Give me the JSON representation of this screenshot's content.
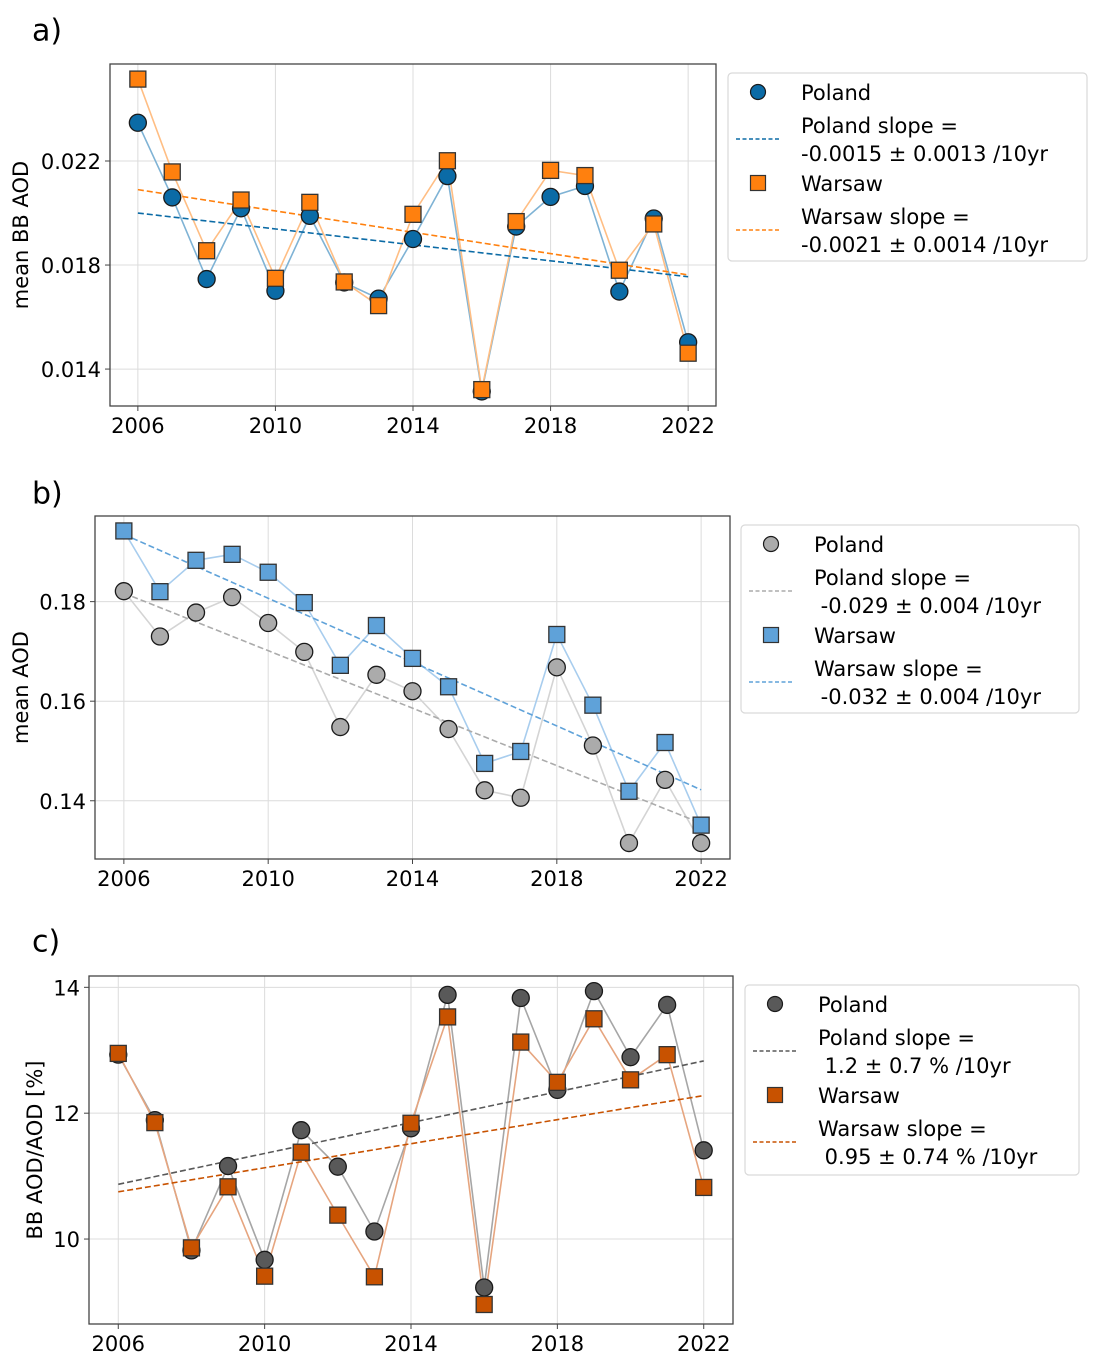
{
  "chart_data": [
    {
      "panel_label": "a)",
      "type": "line",
      "title": "",
      "xlabel": "",
      "ylabel": "mean BB AOD",
      "x": [
        2006,
        2007,
        2008,
        2009,
        2010,
        2011,
        2012,
        2013,
        2014,
        2015,
        2016,
        2017,
        2018,
        2019,
        2020,
        2021,
        2022
      ],
      "xlim": [
        2005.19,
        2022.81
      ],
      "ylim": [
        0.01258,
        0.02573
      ],
      "xticks": [
        2006,
        2010,
        2014,
        2018,
        2022
      ],
      "xtick_labels": [
        "2006",
        "2010",
        "2014",
        "2018",
        "2022"
      ],
      "yticks": [
        0.014,
        0.018,
        0.022
      ],
      "ytick_labels": [
        "0.014",
        "0.018",
        "0.022"
      ],
      "grid": true,
      "legend_position": "outside-right",
      "series": [
        {
          "name": "Poland",
          "marker": "circle",
          "color": "#0b6ba6",
          "line_color": "#7fb3d5",
          "values": [
            0.02347,
            0.0206,
            0.01746,
            0.02018,
            0.01701,
            0.01989,
            0.01733,
            0.01671,
            0.019,
            0.02142,
            0.01314,
            0.01948,
            0.02062,
            0.02104,
            0.01698,
            0.01979,
            0.01503
          ]
        },
        {
          "name": "Warsaw",
          "marker": "square",
          "color": "#ff800e",
          "line_color": "#ffbe84",
          "values": [
            0.02515,
            0.02158,
            0.01855,
            0.0205,
            0.01749,
            0.02041,
            0.01735,
            0.01644,
            0.01995,
            0.02201,
            0.01321,
            0.01967,
            0.02164,
            0.02144,
            0.0178,
            0.01958,
            0.01461
          ]
        }
      ],
      "trends": [
        {
          "name": "Poland slope",
          "label_line1": "Poland slope =",
          "label_line2": "-0.0015 ± 0.0013 /10yr",
          "color": "#0b6ba6",
          "start": [
            2006,
            0.02
          ],
          "end": [
            2022,
            0.01755
          ]
        },
        {
          "name": "Warsaw slope",
          "label_line1": "Warsaw slope =",
          "label_line2": "-0.0021 ± 0.0014 /10yr",
          "color": "#ff800e",
          "start": [
            2006,
            0.0209
          ],
          "end": [
            2022,
            0.01762
          ]
        }
      ]
    },
    {
      "panel_label": "b)",
      "type": "line",
      "title": "",
      "xlabel": "",
      "ylabel": "mean AOD",
      "x": [
        2006,
        2007,
        2008,
        2009,
        2010,
        2011,
        2012,
        2013,
        2014,
        2015,
        2016,
        2017,
        2018,
        2019,
        2020,
        2021,
        2022
      ],
      "xlim": [
        2005.2,
        2022.8
      ],
      "ylim": [
        0.1283,
        0.1972
      ],
      "xticks": [
        2006,
        2010,
        2014,
        2018,
        2022
      ],
      "xtick_labels": [
        "2006",
        "2010",
        "2014",
        "2018",
        "2022"
      ],
      "yticks": [
        0.14,
        0.16,
        0.18
      ],
      "ytick_labels": [
        "0.14",
        "0.16",
        "0.18"
      ],
      "grid": true,
      "legend_position": "outside-right",
      "series": [
        {
          "name": "Poland",
          "marker": "circle",
          "color": "#ababab",
          "line_color": "#d4d4d4",
          "values": [
            0.1821,
            0.173,
            0.1778,
            0.1809,
            0.1757,
            0.1699,
            0.1548,
            0.1653,
            0.162,
            0.1544,
            0.1421,
            0.1406,
            0.1668,
            0.1511,
            0.1315,
            0.1442,
            0.1315
          ]
        },
        {
          "name": "Warsaw",
          "marker": "square",
          "color": "#5fa2d9",
          "line_color": "#a8cdee",
          "values": [
            0.1942,
            0.182,
            0.1883,
            0.1895,
            0.1859,
            0.1798,
            0.1672,
            0.1752,
            0.1686,
            0.1629,
            0.1475,
            0.1499,
            0.1734,
            0.1592,
            0.1419,
            0.1517,
            0.1351
          ]
        }
      ],
      "trends": [
        {
          "name": "Poland slope",
          "label_line1": "Poland slope =",
          "label_line2": " -0.029 ± 0.004 /10yr",
          "color": "#ababab",
          "start": [
            2006,
            0.1817
          ],
          "end": [
            2022,
            0.1355
          ]
        },
        {
          "name": "Warsaw slope",
          "label_line1": "Warsaw slope =",
          "label_line2": " -0.032 ± 0.004 /10yr",
          "color": "#5fa2d9",
          "start": [
            2006,
            0.1935
          ],
          "end": [
            2022,
            0.1422
          ]
        }
      ]
    },
    {
      "panel_label": "c)",
      "type": "line",
      "title": "",
      "xlabel": "",
      "ylabel": "BB AOD/AOD [%]",
      "x": [
        2006,
        2007,
        2008,
        2009,
        2010,
        2011,
        2012,
        2013,
        2014,
        2015,
        2016,
        2017,
        2018,
        2019,
        2020,
        2021,
        2022
      ],
      "xlim": [
        2005.2,
        2022.8
      ],
      "ylim": [
        8.65,
        14.18
      ],
      "xticks": [
        2006,
        2010,
        2014,
        2018,
        2022
      ],
      "xtick_labels": [
        "2006",
        "2010",
        "2014",
        "2018",
        "2022"
      ],
      "yticks": [
        10,
        12,
        14
      ],
      "ytick_labels": [
        "10",
        "12",
        "14"
      ],
      "grid": true,
      "legend_position": "outside-right",
      "series": [
        {
          "name": "Poland",
          "marker": "circle",
          "color": "#595959",
          "line_color": "#a6a6a6",
          "values": [
            12.93,
            11.89,
            9.82,
            11.16,
            9.67,
            11.73,
            11.15,
            10.12,
            11.76,
            13.88,
            9.23,
            13.83,
            12.37,
            13.94,
            12.89,
            13.72,
            11.41
          ]
        },
        {
          "name": "Warsaw",
          "marker": "square",
          "color": "#c85200",
          "line_color": "#e6a57f",
          "values": [
            12.95,
            11.85,
            9.86,
            10.83,
            9.41,
            11.38,
            10.38,
            9.4,
            11.84,
            13.53,
            8.96,
            13.13,
            12.49,
            13.5,
            12.53,
            12.93,
            10.82
          ]
        }
      ],
      "trends": [
        {
          "name": "Poland slope",
          "label_line1": "Poland slope =",
          "label_line2": " 1.2 ± 0.7 % /10yr",
          "color": "#595959",
          "start": [
            2006,
            10.87
          ],
          "end": [
            2022,
            12.83
          ]
        },
        {
          "name": "Warsaw slope",
          "label_line1": "Warsaw slope =",
          "label_line2": " 0.95 ± 0.74 % /10yr",
          "color": "#c85200",
          "start": [
            2006,
            10.75
          ],
          "end": [
            2022,
            12.28
          ]
        }
      ]
    }
  ]
}
